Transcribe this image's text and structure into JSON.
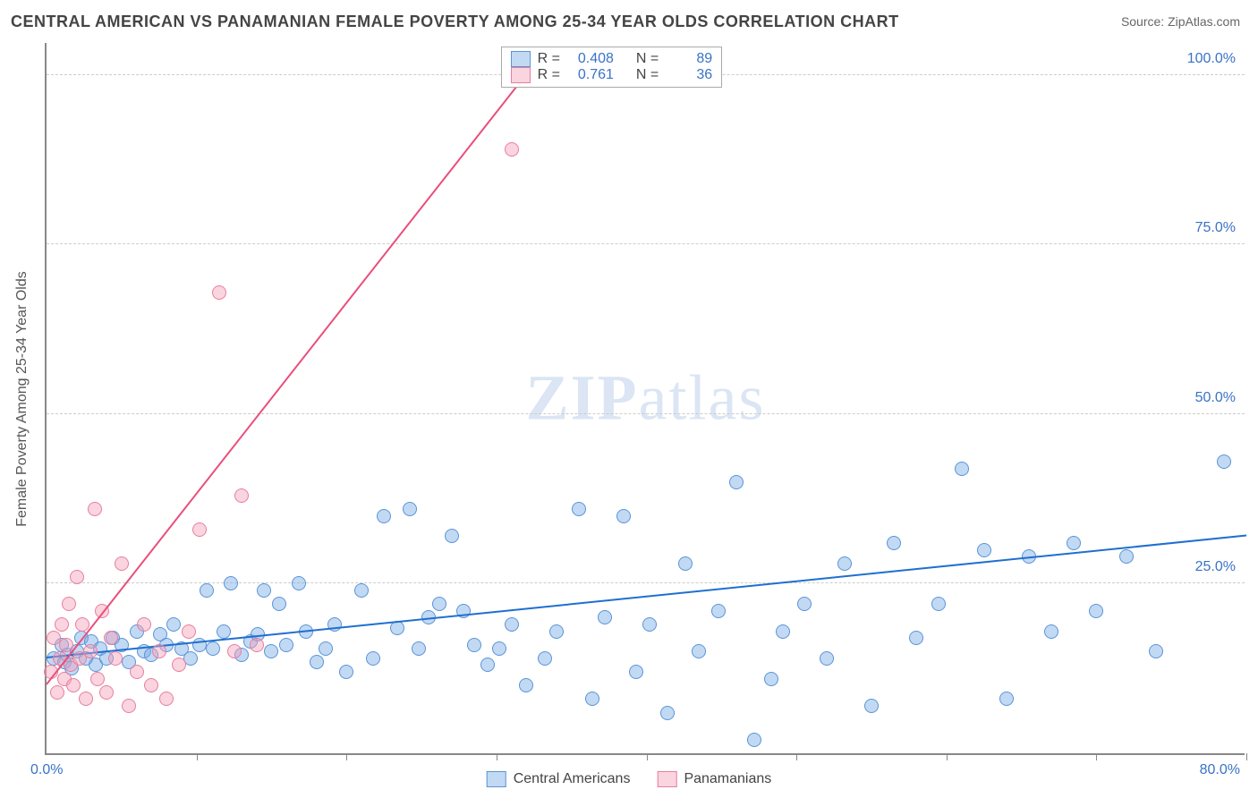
{
  "title": "CENTRAL AMERICAN VS PANAMANIAN FEMALE POVERTY AMONG 25-34 YEAR OLDS CORRELATION CHART",
  "source": "Source: ZipAtlas.com",
  "yaxis_title": "Female Poverty Among 25-34 Year Olds",
  "watermark_parts": [
    "ZIP",
    "atlas"
  ],
  "xlim": [
    0,
    80
  ],
  "ylim": [
    0,
    105
  ],
  "x_origin_label": "0.0%",
  "x_max_label": "80.0%",
  "y_ticks": [
    {
      "v": 25,
      "label": "25.0%"
    },
    {
      "v": 50,
      "label": "50.0%"
    },
    {
      "v": 75,
      "label": "75.0%"
    },
    {
      "v": 100,
      "label": "100.0%"
    }
  ],
  "x_tick_positions": [
    10,
    20,
    30,
    40,
    50,
    60,
    70,
    80
  ],
  "colors": {
    "blue_fill": "rgba(120,170,230,0.45)",
    "blue_stroke": "#5a94d6",
    "blue_line": "#1f6fd0",
    "pink_fill": "rgba(245,160,185,0.45)",
    "pink_stroke": "#e77ea0",
    "pink_line": "#e94f7a",
    "tick_color": "#3973c5",
    "grid": "#cccccc",
    "axis": "#888888"
  },
  "marker_radius": 8,
  "series": [
    {
      "name": "Central Americans",
      "color_key": "blue",
      "stats": {
        "R": "0.408",
        "N": "89"
      },
      "trend": {
        "x1": 0,
        "y1": 14,
        "x2": 80,
        "y2": 32
      },
      "points": [
        [
          0.5,
          14
        ],
        [
          1,
          16
        ],
        [
          1.2,
          13.5
        ],
        [
          1.4,
          14.5
        ],
        [
          1.7,
          12.5
        ],
        [
          2,
          15
        ],
        [
          2.3,
          17
        ],
        [
          2.6,
          14
        ],
        [
          3,
          16.5
        ],
        [
          3.3,
          13
        ],
        [
          3.6,
          15.5
        ],
        [
          4,
          14
        ],
        [
          4.4,
          17
        ],
        [
          5,
          16
        ],
        [
          5.5,
          13.5
        ],
        [
          6,
          18
        ],
        [
          6.5,
          15
        ],
        [
          7,
          14.5
        ],
        [
          7.6,
          17.5
        ],
        [
          8,
          16
        ],
        [
          8.5,
          19
        ],
        [
          9,
          15.5
        ],
        [
          9.6,
          14
        ],
        [
          10.2,
          16
        ],
        [
          10.7,
          24
        ],
        [
          11.1,
          15.5
        ],
        [
          11.8,
          18
        ],
        [
          12.3,
          25
        ],
        [
          13,
          14.5
        ],
        [
          13.6,
          16.5
        ],
        [
          14.1,
          17.5
        ],
        [
          14.5,
          24
        ],
        [
          15.0,
          15
        ],
        [
          15.5,
          22
        ],
        [
          16,
          16
        ],
        [
          16.8,
          25
        ],
        [
          17.3,
          18
        ],
        [
          18,
          13.5
        ],
        [
          18.6,
          15.5
        ],
        [
          19.2,
          19
        ],
        [
          20,
          12
        ],
        [
          21,
          24
        ],
        [
          21.8,
          14
        ],
        [
          22.5,
          35
        ],
        [
          23.4,
          18.5
        ],
        [
          24.2,
          36
        ],
        [
          24.8,
          15.5
        ],
        [
          25.5,
          20
        ],
        [
          26.2,
          22
        ],
        [
          27,
          32
        ],
        [
          27.8,
          21
        ],
        [
          28.5,
          16
        ],
        [
          29.4,
          13
        ],
        [
          30.2,
          15.5
        ],
        [
          31,
          19
        ],
        [
          32,
          10
        ],
        [
          33.2,
          14
        ],
        [
          34,
          18
        ],
        [
          35.5,
          36
        ],
        [
          36.4,
          8
        ],
        [
          37.2,
          20
        ],
        [
          38.5,
          35
        ],
        [
          39.3,
          12
        ],
        [
          40.2,
          19
        ],
        [
          41.4,
          6
        ],
        [
          42.6,
          28
        ],
        [
          43.5,
          15
        ],
        [
          44.8,
          21
        ],
        [
          46,
          40
        ],
        [
          47.2,
          2
        ],
        [
          48.3,
          11
        ],
        [
          49.1,
          18
        ],
        [
          50.5,
          22
        ],
        [
          52,
          14
        ],
        [
          53.2,
          28
        ],
        [
          55,
          7
        ],
        [
          56.5,
          31
        ],
        [
          58,
          17
        ],
        [
          59.5,
          22
        ],
        [
          61,
          42
        ],
        [
          62.5,
          30
        ],
        [
          64,
          8
        ],
        [
          65.5,
          29
        ],
        [
          67,
          18
        ],
        [
          68.5,
          31
        ],
        [
          70,
          21
        ],
        [
          72,
          29
        ],
        [
          74,
          15
        ],
        [
          78.5,
          43
        ]
      ]
    },
    {
      "name": "Panamanians",
      "color_key": "pink",
      "stats": {
        "R": "0.761",
        "N": "36"
      },
      "trend": {
        "x1": 0,
        "y1": 10,
        "x2": 32,
        "y2": 100
      },
      "points": [
        [
          0.3,
          12
        ],
        [
          0.5,
          17
        ],
        [
          0.7,
          9
        ],
        [
          0.9,
          14
        ],
        [
          1.0,
          19
        ],
        [
          1.2,
          11
        ],
        [
          1.3,
          16
        ],
        [
          1.5,
          22
        ],
        [
          1.6,
          13
        ],
        [
          1.8,
          10
        ],
        [
          2.0,
          26
        ],
        [
          2.2,
          14
        ],
        [
          2.4,
          19
        ],
        [
          2.6,
          8
        ],
        [
          2.9,
          15
        ],
        [
          3.2,
          36
        ],
        [
          3.4,
          11
        ],
        [
          3.7,
          21
        ],
        [
          4.0,
          9
        ],
        [
          4.3,
          17
        ],
        [
          4.6,
          14
        ],
        [
          5.0,
          28
        ],
        [
          5.5,
          7
        ],
        [
          6.0,
          12
        ],
        [
          6.5,
          19
        ],
        [
          7.0,
          10
        ],
        [
          7.5,
          15
        ],
        [
          8.0,
          8
        ],
        [
          8.8,
          13
        ],
        [
          9.5,
          18
        ],
        [
          10.2,
          33
        ],
        [
          12.5,
          15
        ],
        [
          13.0,
          38
        ],
        [
          14.0,
          16
        ],
        [
          11.5,
          68
        ],
        [
          31,
          89
        ]
      ]
    }
  ]
}
